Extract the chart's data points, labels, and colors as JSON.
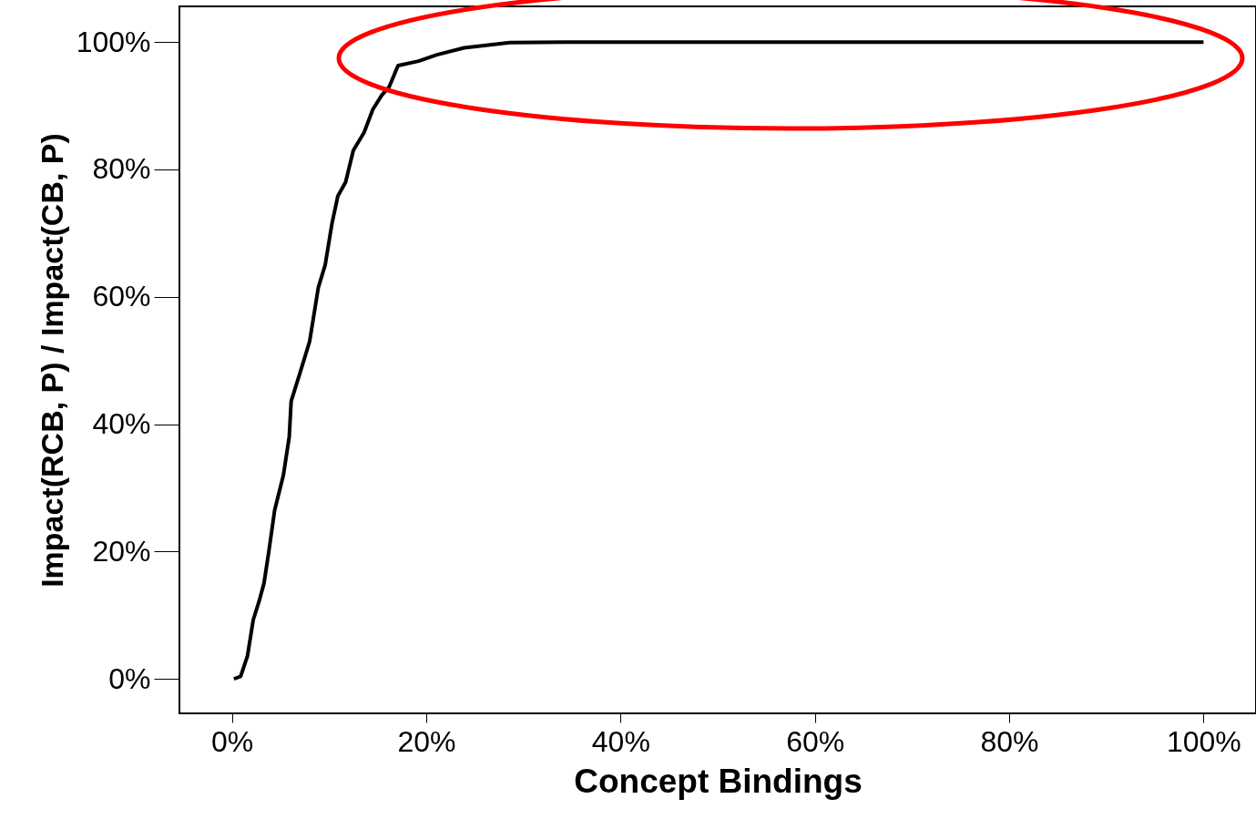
{
  "chart_data": {
    "type": "line",
    "xlabel": "Concept Bindings",
    "ylabel": "Impact(RCB, P) / Impact(CB, P)",
    "x": [
      0.2,
      0.9,
      1.6,
      2.2,
      2.8,
      3.3,
      3.8,
      4.4,
      5.3,
      5.9,
      6.1,
      7.0,
      8.0,
      8.9,
      9.6,
      10.3,
      10.9,
      11.7,
      12.5,
      13.6,
      14.5,
      15.4,
      16.2,
      17.1,
      19.2,
      21.1,
      23.9,
      28.6,
      34.2,
      100
    ],
    "series": [
      {
        "color": "#000000",
        "values": [
          0,
          0.4,
          3.6,
          9.3,
          12.2,
          15,
          20,
          26.5,
          32,
          38,
          43.6,
          48,
          53,
          61.5,
          65,
          71.5,
          75.8,
          78,
          83,
          85.8,
          89.4,
          91.6,
          93,
          96.3,
          97,
          98,
          99.1,
          99.9,
          100,
          100
        ]
      }
    ],
    "xlim": [
      -5.4,
      105.4
    ],
    "ylim": [
      -5.4,
      105.6
    ],
    "xticks": [
      {
        "value": 0,
        "label": "0%"
      },
      {
        "value": 20,
        "label": "20%"
      },
      {
        "value": 40,
        "label": "40%"
      },
      {
        "value": 60,
        "label": "60%"
      },
      {
        "value": 80,
        "label": "80%"
      },
      {
        "value": 100,
        "label": "100%"
      }
    ],
    "yticks": [
      {
        "value": 0,
        "label": "0%"
      },
      {
        "value": 20,
        "label": "20%"
      },
      {
        "value": 40,
        "label": "40%"
      },
      {
        "value": 60,
        "label": "60%"
      },
      {
        "value": 80,
        "label": "80%"
      },
      {
        "value": 100,
        "label": "100%"
      }
    ],
    "grid": false,
    "marker": "none",
    "line_style": "solid"
  }
}
